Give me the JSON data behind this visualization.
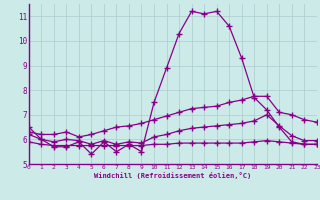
{
  "xlabel": "Windchill (Refroidissement éolien,°C)",
  "bg_color": "#cceae7",
  "line_color": "#880088",
  "grid_color": "#aacccc",
  "xmin": 0,
  "xmax": 23,
  "ymin": 5,
  "ymax": 11.5,
  "yticks": [
    5,
    6,
    7,
    8,
    9,
    10,
    11
  ],
  "xticks": [
    0,
    1,
    2,
    3,
    4,
    5,
    6,
    7,
    8,
    9,
    10,
    11,
    12,
    13,
    14,
    15,
    16,
    17,
    18,
    19,
    20,
    21,
    22,
    23
  ],
  "series": [
    {
      "x": [
        0,
        1,
        2,
        3,
        4,
        5,
        6,
        7,
        8,
        9,
        10,
        11,
        12,
        13,
        14,
        15,
        16,
        17,
        18,
        19,
        20,
        21,
        22,
        23
      ],
      "y": [
        6.5,
        6.0,
        5.7,
        5.7,
        5.9,
        5.4,
        5.9,
        5.5,
        5.8,
        5.5,
        7.5,
        8.9,
        10.3,
        11.2,
        11.1,
        11.2,
        10.6,
        9.3,
        7.7,
        7.2,
        6.5,
        5.9,
        5.8,
        5.8
      ]
    },
    {
      "x": [
        0,
        1,
        2,
        3,
        4,
        5,
        6,
        7,
        8,
        9,
        10,
        11,
        12,
        13,
        14,
        15,
        16,
        17,
        18,
        19,
        20,
        21,
        22,
        23
      ],
      "y": [
        6.3,
        6.2,
        6.2,
        6.3,
        6.1,
        6.2,
        6.35,
        6.5,
        6.55,
        6.65,
        6.8,
        6.95,
        7.1,
        7.25,
        7.3,
        7.35,
        7.5,
        7.6,
        7.75,
        7.75,
        7.1,
        7.0,
        6.8,
        6.7
      ]
    },
    {
      "x": [
        0,
        1,
        2,
        3,
        4,
        5,
        6,
        7,
        8,
        9,
        10,
        11,
        12,
        13,
        14,
        15,
        16,
        17,
        18,
        19,
        20,
        21,
        22,
        23
      ],
      "y": [
        6.2,
        6.0,
        5.9,
        6.0,
        5.95,
        5.8,
        5.95,
        5.8,
        5.9,
        5.85,
        6.1,
        6.2,
        6.35,
        6.45,
        6.5,
        6.55,
        6.6,
        6.65,
        6.75,
        7.0,
        6.55,
        6.15,
        5.95,
        5.95
      ]
    },
    {
      "x": [
        0,
        1,
        2,
        3,
        4,
        5,
        6,
        7,
        8,
        9,
        10,
        11,
        12,
        13,
        14,
        15,
        16,
        17,
        18,
        19,
        20,
        21,
        22,
        23
      ],
      "y": [
        5.9,
        5.8,
        5.75,
        5.75,
        5.75,
        5.75,
        5.75,
        5.75,
        5.75,
        5.75,
        5.8,
        5.8,
        5.85,
        5.85,
        5.85,
        5.85,
        5.85,
        5.85,
        5.9,
        5.95,
        5.9,
        5.85,
        5.8,
        5.8
      ]
    }
  ]
}
